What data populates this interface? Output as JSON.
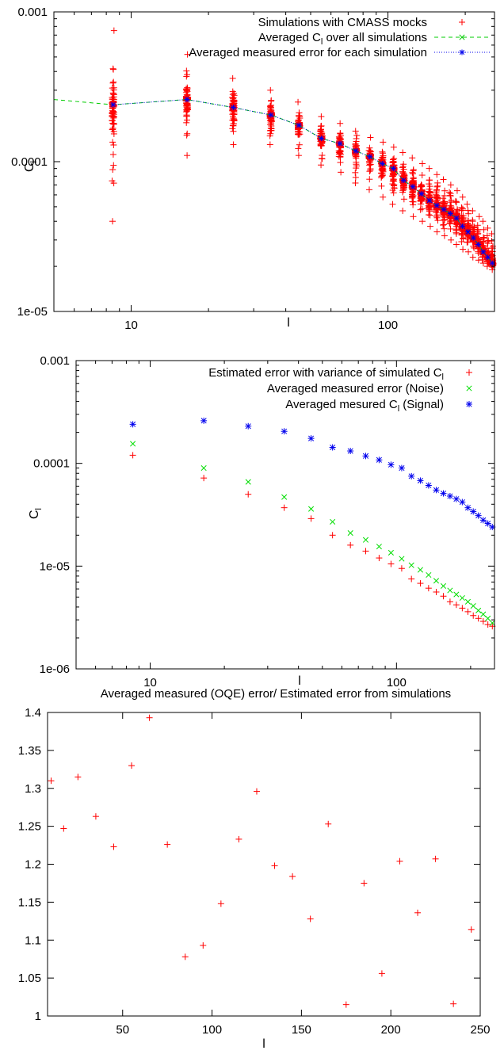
{
  "chart_data": [
    {
      "type": "scatter",
      "xscale": "log",
      "yscale": "log",
      "xlim": [
        5,
        260
      ],
      "ylim": [
        1e-05,
        0.001
      ],
      "xlabel": "l",
      "ylabel": "C",
      "ylabel_sub": "l",
      "x_tick_labels": [
        "10",
        "100"
      ],
      "y_tick_labels": [
        "1e-05",
        "0.0001",
        "0.001"
      ],
      "legend_position": "top-right",
      "grid": false,
      "series": [
        {
          "name": "Simulations with CMASS mocks",
          "marker": "plus",
          "color": "#ff0000",
          "x": [
            8.5,
            16.5,
            25,
            35,
            45,
            55,
            65,
            75,
            85,
            95,
            105,
            115,
            125,
            135,
            145,
            155,
            165,
            175,
            185,
            195,
            205,
            215,
            225,
            235,
            245,
            255
          ],
          "y_min": [
            4e-05,
            0.00011,
            0.00013,
            0.00013,
            0.00011,
            9.5e-05,
            8.5e-05,
            7.2e-05,
            6.5e-05,
            5.8e-05,
            5.2e-05,
            4.7e-05,
            4.3e-05,
            4e-05,
            3.7e-05,
            3.4e-05,
            3.2e-05,
            3e-05,
            2.8e-05,
            2.6e-05,
            2.5e-05,
            2.3e-05,
            2.2e-05,
            2.1e-05,
            2e-05,
            1.9e-05
          ],
          "y_max": [
            0.00075,
            0.00052,
            0.00036,
            0.0003,
            0.00025,
            0.0002,
            0.00018,
            0.00016,
            0.000145,
            0.000135,
            0.000125,
            0.000115,
            0.000106,
            9.7e-05,
            9e-05,
            8.2e-05,
            7.6e-05,
            7e-05,
            6.4e-05,
            5.8e-05,
            5.2e-05,
            4.7e-05,
            4.3e-05,
            4e-05,
            3.6e-05,
            3.3e-05
          ]
        },
        {
          "name": "Averaged C",
          "name_sub": "l",
          "name_suffix": " over all simulations",
          "marker": "cross",
          "line": "dashed",
          "color": "#00cc00",
          "x": [
            5,
            8.5,
            16.5,
            25,
            35,
            45,
            55,
            65,
            75,
            85,
            95,
            105,
            115,
            125,
            135,
            145,
            155,
            165,
            175,
            185,
            195,
            205,
            215,
            225,
            235,
            245,
            255
          ],
          "y": [
            0.00026,
            0.00024,
            0.00026,
            0.00023,
            0.000205,
            0.000175,
            0.000143,
            0.000132,
            0.000118,
            0.000108,
            9.7e-05,
            9e-05,
            7.5e-05,
            6.8e-05,
            6.1e-05,
            5.5e-05,
            5.1e-05,
            4.8e-05,
            4.5e-05,
            4.2e-05,
            3.7e-05,
            3.4e-05,
            3.1e-05,
            2.8e-05,
            2.5e-05,
            2.3e-05,
            2.1e-05
          ]
        },
        {
          "name": "Averaged measured error for each simulation",
          "marker": "star",
          "line": "dotted",
          "color": "#0000ee",
          "x": [
            8.5,
            16.5,
            25,
            35,
            45,
            55,
            65,
            75,
            85,
            95,
            105,
            115,
            125,
            135,
            145,
            155,
            165,
            175,
            185,
            195,
            205,
            215,
            225,
            235,
            245,
            255
          ],
          "y": [
            0.00024,
            0.00026,
            0.00023,
            0.000205,
            0.000175,
            0.000143,
            0.000132,
            0.000118,
            0.000108,
            9.7e-05,
            9e-05,
            7.5e-05,
            6.8e-05,
            6.1e-05,
            5.5e-05,
            5.1e-05,
            4.8e-05,
            4.5e-05,
            4.2e-05,
            3.7e-05,
            3.4e-05,
            3.1e-05,
            2.8e-05,
            2.5e-05,
            2.3e-05,
            2.1e-05
          ]
        }
      ]
    },
    {
      "type": "scatter",
      "xscale": "log",
      "yscale": "log",
      "xlim": [
        5,
        250
      ],
      "ylim": [
        1e-06,
        0.001
      ],
      "xlabel": "l",
      "ylabel": "C",
      "ylabel_sub": "l",
      "x_tick_labels": [
        "10",
        "100"
      ],
      "y_tick_labels": [
        "1e-06",
        "1e-05",
        "0.0001",
        "0.001"
      ],
      "legend_position": "top-right",
      "grid": false,
      "series": [
        {
          "name": "Estimated error with variance of simulated C",
          "name_sub": "l",
          "marker": "plus",
          "color": "#ff0000",
          "x": [
            8.5,
            16.5,
            25,
            35,
            45,
            55,
            65,
            75,
            85,
            95,
            105,
            115,
            125,
            135,
            145,
            155,
            165,
            175,
            185,
            195,
            205,
            215,
            225,
            235,
            245
          ],
          "y": [
            0.00012,
            7.2e-05,
            5e-05,
            3.7e-05,
            2.9e-05,
            2e-05,
            1.6e-05,
            1.4e-05,
            1.2e-05,
            1.05e-05,
            9.5e-06,
            7.5e-06,
            6.8e-06,
            6.1e-06,
            5.6e-06,
            5.1e-06,
            4.5e-06,
            4.2e-06,
            3.9e-06,
            3.6e-06,
            3.3e-06,
            3.1e-06,
            2.9e-06,
            2.7e-06,
            2.6e-06
          ]
        },
        {
          "name": "Averaged measured error (Noise)",
          "marker": "cross",
          "color": "#00dd00",
          "x": [
            8.5,
            16.5,
            25,
            35,
            45,
            55,
            65,
            75,
            85,
            95,
            105,
            115,
            125,
            135,
            145,
            155,
            165,
            175,
            185,
            195,
            205,
            215,
            225,
            235,
            245
          ],
          "y": [
            0.000155,
            9e-05,
            6.6e-05,
            4.7e-05,
            3.6e-05,
            2.7e-05,
            2.1e-05,
            1.8e-05,
            1.55e-05,
            1.35e-05,
            1.18e-05,
            1.02e-05,
            9.2e-06,
            8.2e-06,
            7.2e-06,
            6.4e-06,
            5.8e-06,
            5.3e-06,
            4.9e-06,
            4.5e-06,
            4.1e-06,
            3.7e-06,
            3.4e-06,
            3.1e-06,
            2.8e-06
          ]
        },
        {
          "name": "Averaged mesured C",
          "name_sub": "l",
          "name_suffix": " (Signal)",
          "marker": "star",
          "color": "#0000ee",
          "x": [
            8.5,
            16.5,
            25,
            35,
            45,
            55,
            65,
            75,
            85,
            95,
            105,
            115,
            125,
            135,
            145,
            155,
            165,
            175,
            185,
            195,
            205,
            215,
            225,
            235,
            245
          ],
          "y": [
            0.00024,
            0.00026,
            0.00023,
            0.000205,
            0.000175,
            0.000143,
            0.000132,
            0.000118,
            0.000108,
            9.7e-05,
            9e-05,
            7.5e-05,
            6.8e-05,
            6.1e-05,
            5.5e-05,
            5.1e-05,
            4.8e-05,
            4.5e-05,
            4.2e-05,
            3.7e-05,
            3.4e-05,
            3.1e-05,
            2.8e-05,
            2.6e-05,
            2.4e-05
          ]
        }
      ]
    },
    {
      "type": "scatter",
      "title": "Averaged measured (OQE) error/ Estimated error from simulations",
      "xscale": "linear",
      "yscale": "linear",
      "xlim": [
        8,
        250
      ],
      "ylim": [
        1,
        1.4
      ],
      "xlabel": "l",
      "ylabel": "",
      "x_tick_labels": [
        "50",
        "100",
        "150",
        "200",
        "250"
      ],
      "y_tick_labels": [
        "1",
        "1.05",
        "1.1",
        "1.15",
        "1.2",
        "1.25",
        "1.3",
        "1.35",
        "1.4"
      ],
      "grid": false,
      "series": [
        {
          "marker": "plus",
          "color": "#ff0000",
          "x": [
            10,
            17,
            25,
            35,
            45,
            55,
            65,
            75,
            85,
            95,
            105,
            115,
            125,
            135,
            145,
            155,
            165,
            175,
            185,
            195,
            205,
            215,
            225,
            235,
            245
          ],
          "y": [
            1.31,
            1.247,
            1.315,
            1.263,
            1.223,
            1.33,
            1.393,
            1.226,
            1.078,
            1.093,
            1.148,
            1.233,
            1.296,
            1.198,
            1.184,
            1.128,
            1.253,
            1.015,
            1.175,
            1.056,
            1.204,
            1.136,
            1.207,
            1.016,
            1.114
          ]
        }
      ]
    }
  ]
}
